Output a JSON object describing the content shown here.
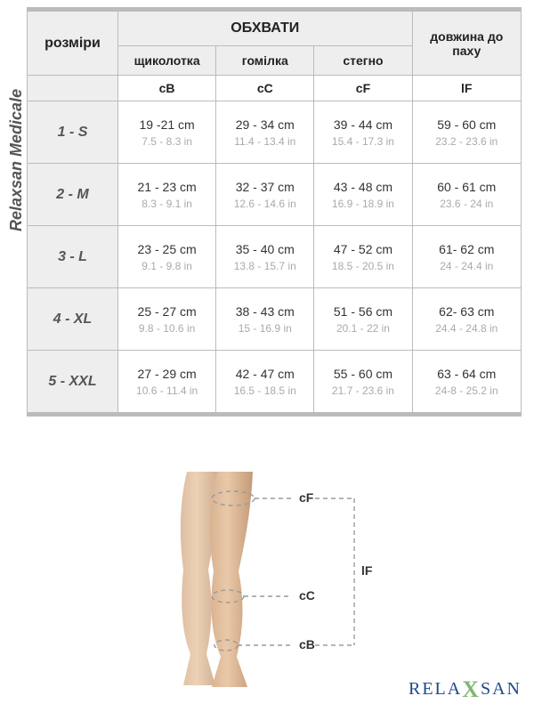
{
  "brand_side_label": "Relaxsan Medicale",
  "headers": {
    "sizes": "розміри",
    "circumferences": "ОБХВАТИ",
    "ankle": "щиколотка",
    "calf": "гомілка",
    "thigh": "стегно",
    "length_to_groin": "довжина до паху",
    "code_ankle": "cB",
    "code_calf": "cC",
    "code_thigh": "cF",
    "code_length": "lF"
  },
  "rows": [
    {
      "size": "1 - S",
      "ankle_cm": "19 -21 cm",
      "ankle_in": "7.5 - 8.3 in",
      "calf_cm": "29 - 34 cm",
      "calf_in": "11.4 - 13.4 in",
      "thigh_cm": "39 - 44 cm",
      "thigh_in": "15.4 - 17.3 in",
      "len_cm": "59 - 60 cm",
      "len_in": "23.2 - 23.6 in"
    },
    {
      "size": "2 - M",
      "ankle_cm": "21 - 23 cm",
      "ankle_in": "8.3 - 9.1 in",
      "calf_cm": "32 - 37 cm",
      "calf_in": "12.6 - 14.6 in",
      "thigh_cm": "43 - 48 cm",
      "thigh_in": "16.9 - 18.9 in",
      "len_cm": "60 - 61 cm",
      "len_in": "23.6 - 24 in"
    },
    {
      "size": "3 - L",
      "ankle_cm": "23 - 25 cm",
      "ankle_in": "9.1 - 9.8 in",
      "calf_cm": "35 - 40 cm",
      "calf_in": "13.8 - 15.7 in",
      "thigh_cm": "47 - 52 cm",
      "thigh_in": "18.5 - 20.5 in",
      "len_cm": "61- 62 cm",
      "len_in": "24 - 24.4 in"
    },
    {
      "size": "4 - XL",
      "ankle_cm": "25 - 27 cm",
      "ankle_in": "9.8 - 10.6 in",
      "calf_cm": "38 - 43 cm",
      "calf_in": "15 - 16.9 in",
      "thigh_cm": "51 - 56 cm",
      "thigh_in": "20.1 - 22 in",
      "len_cm": "62- 63 cm",
      "len_in": "24.4 - 24.8 in"
    },
    {
      "size": "5 - XXL",
      "ankle_cm": "27 - 29 cm",
      "ankle_in": "10.6 - 11.4 in",
      "calf_cm": "42 - 47 cm",
      "calf_in": "16.5 - 18.5 in",
      "thigh_cm": "55 - 60 cm",
      "thigh_in": "21.7 - 23.6 in",
      "len_cm": "63 - 64 cm",
      "len_in": "24-8 - 25.2 in"
    }
  ],
  "diagram": {
    "labels": {
      "cF": "cF",
      "cC": "cC",
      "cB": "cB",
      "lF": "lF"
    },
    "colors": {
      "skin_light": "#e9c9a9",
      "skin_mid": "#d8b291",
      "skin_dark": "#c49a77",
      "dash": "#9a9a9a",
      "text": "#333333"
    }
  },
  "logo": {
    "pre": "RELA",
    "x": "X",
    "post": "SAN"
  },
  "style": {
    "header_bg": "#eeeeee",
    "border_color": "#bbbbbb",
    "cm_color": "#333333",
    "in_color": "#aaaaaa",
    "size_text_color": "#555555"
  }
}
